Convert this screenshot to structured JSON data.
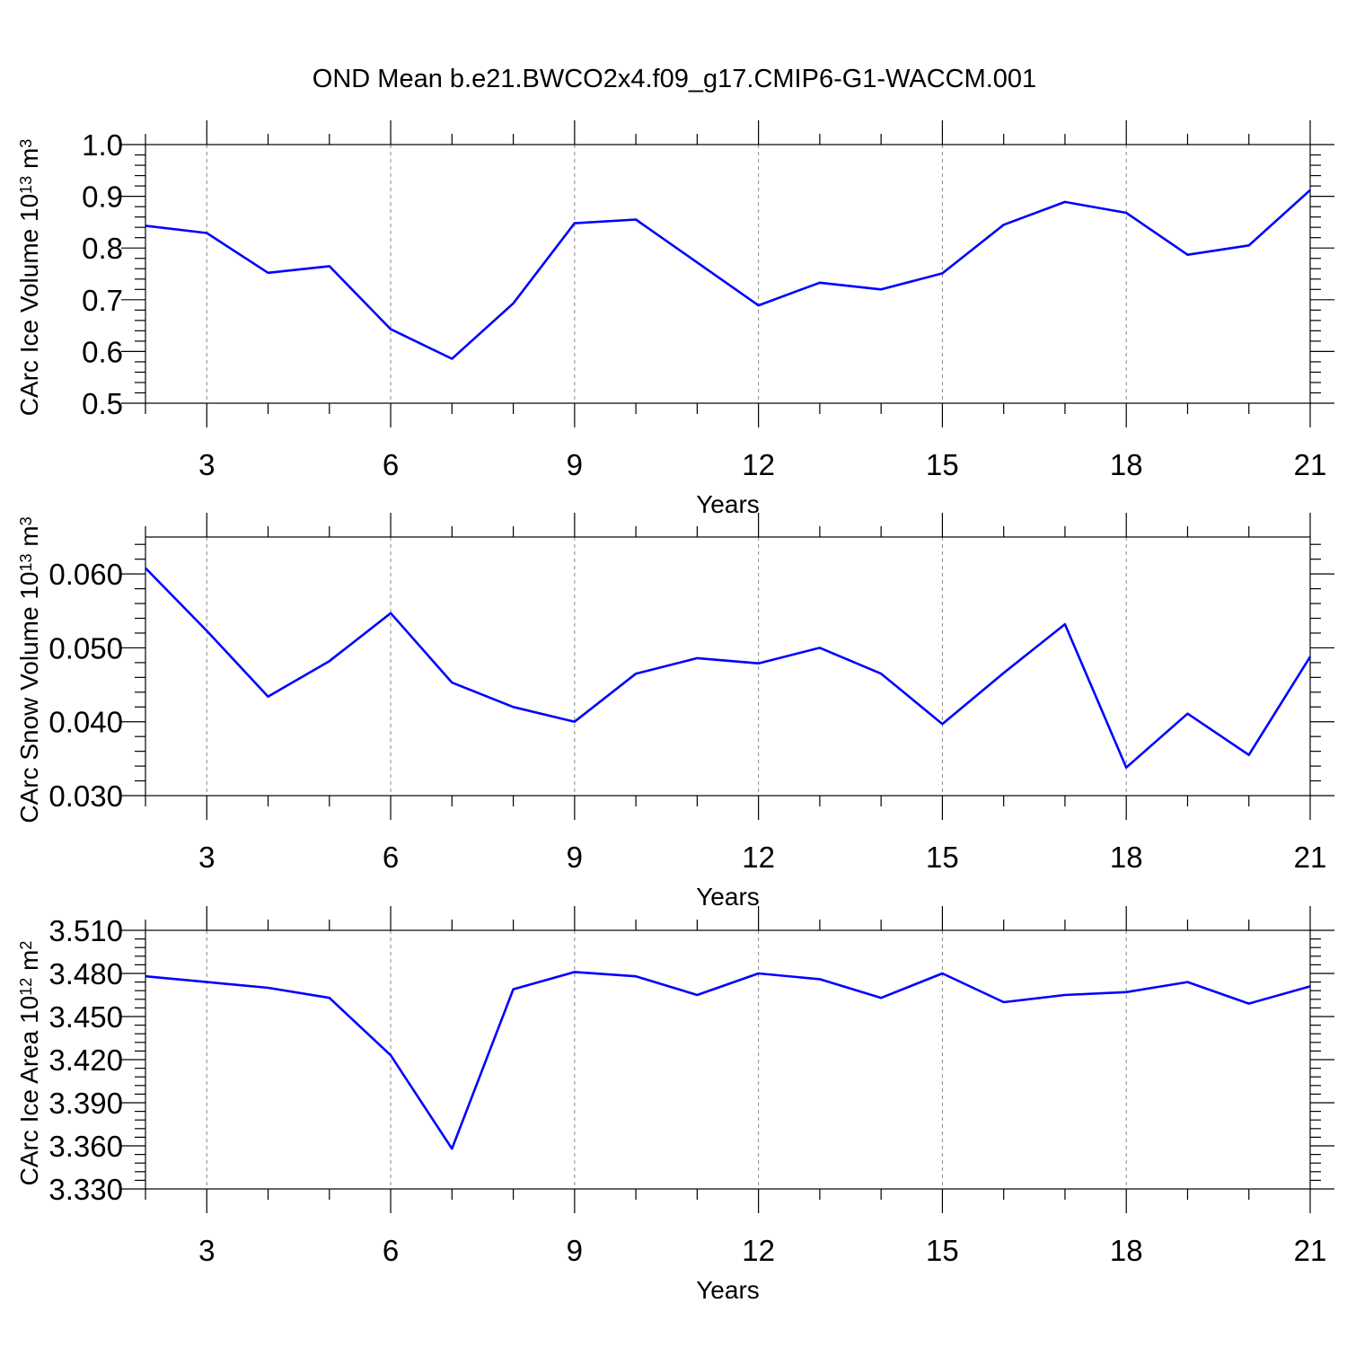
{
  "title": "OND Mean b.e21.BWCO2x4.f09_g17.CMIP6-G1-WACCM.001",
  "colors": {
    "series": "#0000ff",
    "axis": "#000000",
    "grid": "#888888"
  },
  "chart_data": [
    {
      "type": "line",
      "title": "OND Mean b.e21.BWCO2x4.f09_g17.CMIP6-G1-WACCM.001",
      "xlabel": "Years",
      "ylabel": "CArc Ice Volume 10",
      "ylabel_exponent": "13",
      "ylabel_unit": " m",
      "ylabel_unit_exponent": "3",
      "xlim": [
        2,
        21
      ],
      "ylim": [
        0.5,
        1.0
      ],
      "xticks": [
        "3",
        "6",
        "9",
        "12",
        "15",
        "18",
        "21"
      ],
      "xtick_values": [
        3,
        6,
        9,
        12,
        15,
        18,
        21
      ],
      "yticks": [
        "0.5",
        "0.6",
        "0.7",
        "0.8",
        "0.9",
        "1.0"
      ],
      "ytick_values": [
        0.5,
        0.6,
        0.7,
        0.8,
        0.9,
        1.0
      ],
      "grid": "vertical dashed at major x ticks",
      "x": [
        2,
        3,
        4,
        5,
        6,
        7,
        8,
        9,
        10,
        11,
        12,
        13,
        14,
        15,
        16,
        17,
        18,
        19,
        20,
        21
      ],
      "values": [
        0.843,
        0.829,
        0.752,
        0.765,
        0.643,
        0.586,
        0.693,
        0.848,
        0.855,
        0.772,
        0.689,
        0.733,
        0.72,
        0.751,
        0.845,
        0.889,
        0.868,
        0.787,
        0.805,
        0.912
      ]
    },
    {
      "type": "line",
      "xlabel": "Years",
      "ylabel": "CArc Snow Volume 10",
      "ylabel_exponent": "13",
      "ylabel_unit": " m",
      "ylabel_unit_exponent": "3",
      "xlim": [
        2,
        21
      ],
      "ylim": [
        0.03,
        0.065
      ],
      "xticks": [
        "3",
        "6",
        "9",
        "12",
        "15",
        "18",
        "21"
      ],
      "xtick_values": [
        3,
        6,
        9,
        12,
        15,
        18,
        21
      ],
      "yticks": [
        "0.030",
        "0.040",
        "0.050",
        "0.060"
      ],
      "ytick_values": [
        0.03,
        0.04,
        0.05,
        0.06
      ],
      "grid": "vertical dashed at major x ticks",
      "x": [
        2,
        3,
        4,
        5,
        6,
        7,
        8,
        9,
        10,
        11,
        12,
        13,
        14,
        15,
        16,
        17,
        18,
        19,
        20,
        21
      ],
      "values": [
        0.0608,
        0.0523,
        0.0434,
        0.0482,
        0.0547,
        0.0453,
        0.042,
        0.04,
        0.0465,
        0.0486,
        0.0479,
        0.05,
        0.0465,
        0.0397,
        0.0466,
        0.0532,
        0.0338,
        0.0411,
        0.0355,
        0.0488
      ]
    },
    {
      "type": "line",
      "xlabel": "Years",
      "ylabel": "CArc Ice Area 10",
      "ylabel_exponent": "12",
      "ylabel_unit": " m",
      "ylabel_unit_exponent": "2",
      "xlim": [
        2,
        21
      ],
      "ylim": [
        3.33,
        3.51
      ],
      "xticks": [
        "3",
        "6",
        "9",
        "12",
        "15",
        "18",
        "21"
      ],
      "xtick_values": [
        3,
        6,
        9,
        12,
        15,
        18,
        21
      ],
      "yticks": [
        "3.330",
        "3.360",
        "3.390",
        "3.420",
        "3.450",
        "3.480",
        "3.510"
      ],
      "ytick_values": [
        3.33,
        3.36,
        3.39,
        3.42,
        3.45,
        3.48,
        3.51
      ],
      "grid": "vertical dashed at major x ticks",
      "x": [
        2,
        3,
        4,
        5,
        6,
        7,
        8,
        9,
        10,
        11,
        12,
        13,
        14,
        15,
        16,
        17,
        18,
        19,
        20,
        21
      ],
      "values": [
        3.478,
        3.474,
        3.47,
        3.463,
        3.423,
        3.358,
        3.469,
        3.481,
        3.478,
        3.465,
        3.48,
        3.476,
        3.463,
        3.48,
        3.46,
        3.465,
        3.467,
        3.474,
        3.459,
        3.471
      ]
    }
  ]
}
